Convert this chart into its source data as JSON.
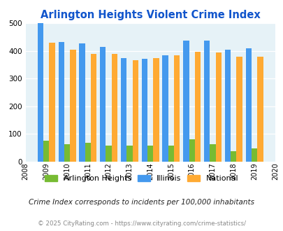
{
  "title": "Arlington Heights Violent Crime Index",
  "title_color": "#1155cc",
  "years": [
    2009,
    2010,
    2011,
    2012,
    2013,
    2014,
    2015,
    2016,
    2017,
    2018,
    2019
  ],
  "arlington_heights": [
    75,
    62,
    67,
    58,
    58,
    57,
    58,
    80,
    62,
    38,
    49
  ],
  "illinois": [
    500,
    433,
    427,
    414,
    375,
    370,
    384,
    438,
    438,
    405,
    408
  ],
  "national": [
    430,
    405,
    388,
    388,
    367,
    375,
    383,
    397,
    395,
    380,
    379
  ],
  "arlington_color": "#77bb33",
  "illinois_color": "#4499ee",
  "national_color": "#ffaa33",
  "bg_color": "#e6f2f7",
  "xlim": [
    2008,
    2020
  ],
  "ylim": [
    0,
    500
  ],
  "yticks": [
    0,
    100,
    200,
    300,
    400,
    500
  ],
  "legend_labels": [
    "Arlington Heights",
    "Illinois",
    "National"
  ],
  "footnote1": "Crime Index corresponds to incidents per 100,000 inhabitants",
  "footnote2": "© 2025 CityRating.com - https://www.cityrating.com/crime-statistics/",
  "bar_width": 0.28
}
